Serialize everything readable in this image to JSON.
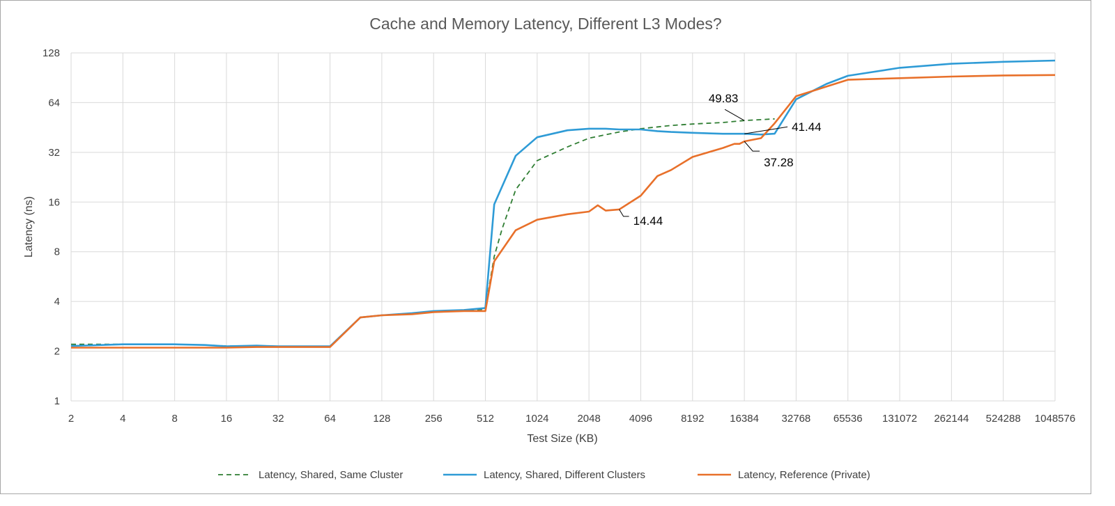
{
  "chart_data": {
    "type": "line",
    "title": "Cache and Memory Latency, Different L3 Modes?",
    "xlabel": "Test Size (KB)",
    "ylabel": "Latency (ns)",
    "x_scale": "log2",
    "y_scale": "log2",
    "xlim": [
      2,
      1048576
    ],
    "ylim": [
      1,
      128
    ],
    "x_ticks": [
      "2",
      "4",
      "8",
      "16",
      "32",
      "64",
      "128",
      "256",
      "512",
      "1024",
      "2048",
      "4096",
      "8192",
      "16384",
      "32768",
      "65536",
      "131072",
      "262144",
      "524288",
      "1048576"
    ],
    "y_ticks": [
      "1",
      "2",
      "4",
      "8",
      "16",
      "32",
      "64",
      "128"
    ],
    "grid": true,
    "legend_position": "bottom",
    "series": [
      {
        "name": "Latency, Shared, Same Cluster",
        "color": "#2e7d32",
        "style": "dashed",
        "x": [
          2,
          4,
          8,
          12,
          16,
          24,
          32,
          48,
          64,
          96,
          128,
          192,
          256,
          384,
          512,
          576,
          640,
          768,
          1024,
          1536,
          2048,
          3072,
          4096,
          6144,
          8192,
          12288,
          16384,
          24576
        ],
        "y": [
          2.2,
          2.2,
          2.2,
          2.18,
          2.15,
          2.15,
          2.14,
          2.14,
          2.14,
          3.2,
          3.3,
          3.4,
          3.5,
          3.5,
          3.6,
          7.5,
          11.0,
          19.0,
          28.5,
          34.5,
          39.0,
          42.5,
          44.5,
          46.5,
          47.5,
          48.5,
          49.83,
          51.0
        ]
      },
      {
        "name": "Latency, Shared, Different Clusters",
        "color": "#2e9bd6",
        "style": "solid",
        "x": [
          2,
          4,
          8,
          12,
          16,
          24,
          32,
          48,
          64,
          96,
          128,
          192,
          256,
          384,
          512,
          576,
          768,
          1024,
          1536,
          2048,
          2560,
          3072,
          4096,
          5120,
          6144,
          8192,
          12288,
          16384,
          20480,
          24576,
          32768,
          49152,
          65536,
          131072,
          262144,
          524288,
          1048576
        ],
        "y": [
          2.15,
          2.2,
          2.2,
          2.18,
          2.14,
          2.16,
          2.14,
          2.14,
          2.14,
          3.2,
          3.3,
          3.4,
          3.5,
          3.55,
          3.65,
          15.5,
          30.5,
          39.5,
          43.5,
          44.5,
          44.5,
          44.0,
          44.0,
          43.0,
          42.5,
          42.0,
          41.44,
          41.44,
          41.0,
          41.5,
          67.0,
          83.0,
          93.0,
          104.0,
          110.0,
          113.0,
          115.0
        ]
      },
      {
        "name": "Latency, Reference (Private)",
        "color": "#e8702a",
        "style": "solid",
        "x": [
          2,
          4,
          8,
          12,
          16,
          24,
          32,
          48,
          64,
          96,
          128,
          192,
          256,
          384,
          512,
          576,
          768,
          1024,
          1536,
          2048,
          2304,
          2560,
          3072,
          4096,
          5120,
          6144,
          8192,
          12288,
          14336,
          15360,
          16384,
          20480,
          24576,
          32768,
          49152,
          65536,
          131072,
          262144,
          524288,
          1048576
        ],
        "y": [
          2.1,
          2.1,
          2.1,
          2.1,
          2.1,
          2.12,
          2.12,
          2.12,
          2.12,
          3.2,
          3.3,
          3.35,
          3.45,
          3.5,
          3.5,
          7.0,
          10.8,
          12.5,
          13.5,
          14.0,
          15.3,
          14.2,
          14.44,
          17.5,
          23.0,
          25.0,
          30.0,
          34.0,
          36.0,
          36.0,
          37.28,
          39.0,
          48.0,
          70.0,
          80.0,
          88.0,
          90.0,
          92.0,
          93.5,
          94.0
        ]
      }
    ],
    "annotations": [
      {
        "text": "49.83",
        "x": 16384,
        "y": 49.83,
        "series": "Latency, Shared, Same Cluster"
      },
      {
        "text": "41.44",
        "x": 16384,
        "y": 41.44,
        "series": "Latency, Shared, Different Clusters"
      },
      {
        "text": "37.28",
        "x": 16384,
        "y": 37.28,
        "series": "Latency, Reference (Private)"
      },
      {
        "text": "14.44",
        "x": 3072,
        "y": 14.44,
        "series": "Latency, Reference (Private)"
      }
    ]
  }
}
